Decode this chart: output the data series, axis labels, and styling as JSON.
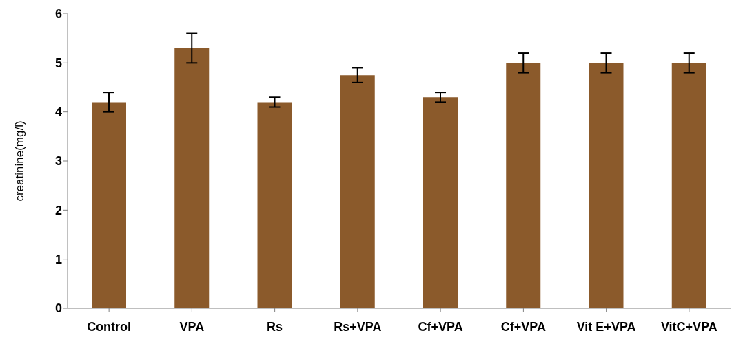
{
  "chart_data": {
    "type": "bar",
    "ylabel": "creatinine(mg/l)",
    "categories": [
      "Control",
      "VPA",
      "Rs",
      "Rs+VPA",
      "Cf+VPA",
      "Cf+VPA",
      "Vit E+VPA",
      "VitC+VPA"
    ],
    "values": [
      4.2,
      5.3,
      4.2,
      4.75,
      4.3,
      5.0,
      5.0,
      5.0
    ],
    "errors": [
      0.2,
      0.3,
      0.1,
      0.15,
      0.1,
      0.2,
      0.2,
      0.2
    ],
    "color": "#8b5a2b",
    "ylim": [
      0,
      6
    ],
    "yticks": [
      0,
      1,
      2,
      3,
      4,
      5,
      6
    ],
    "grid": false,
    "legend": false
  }
}
